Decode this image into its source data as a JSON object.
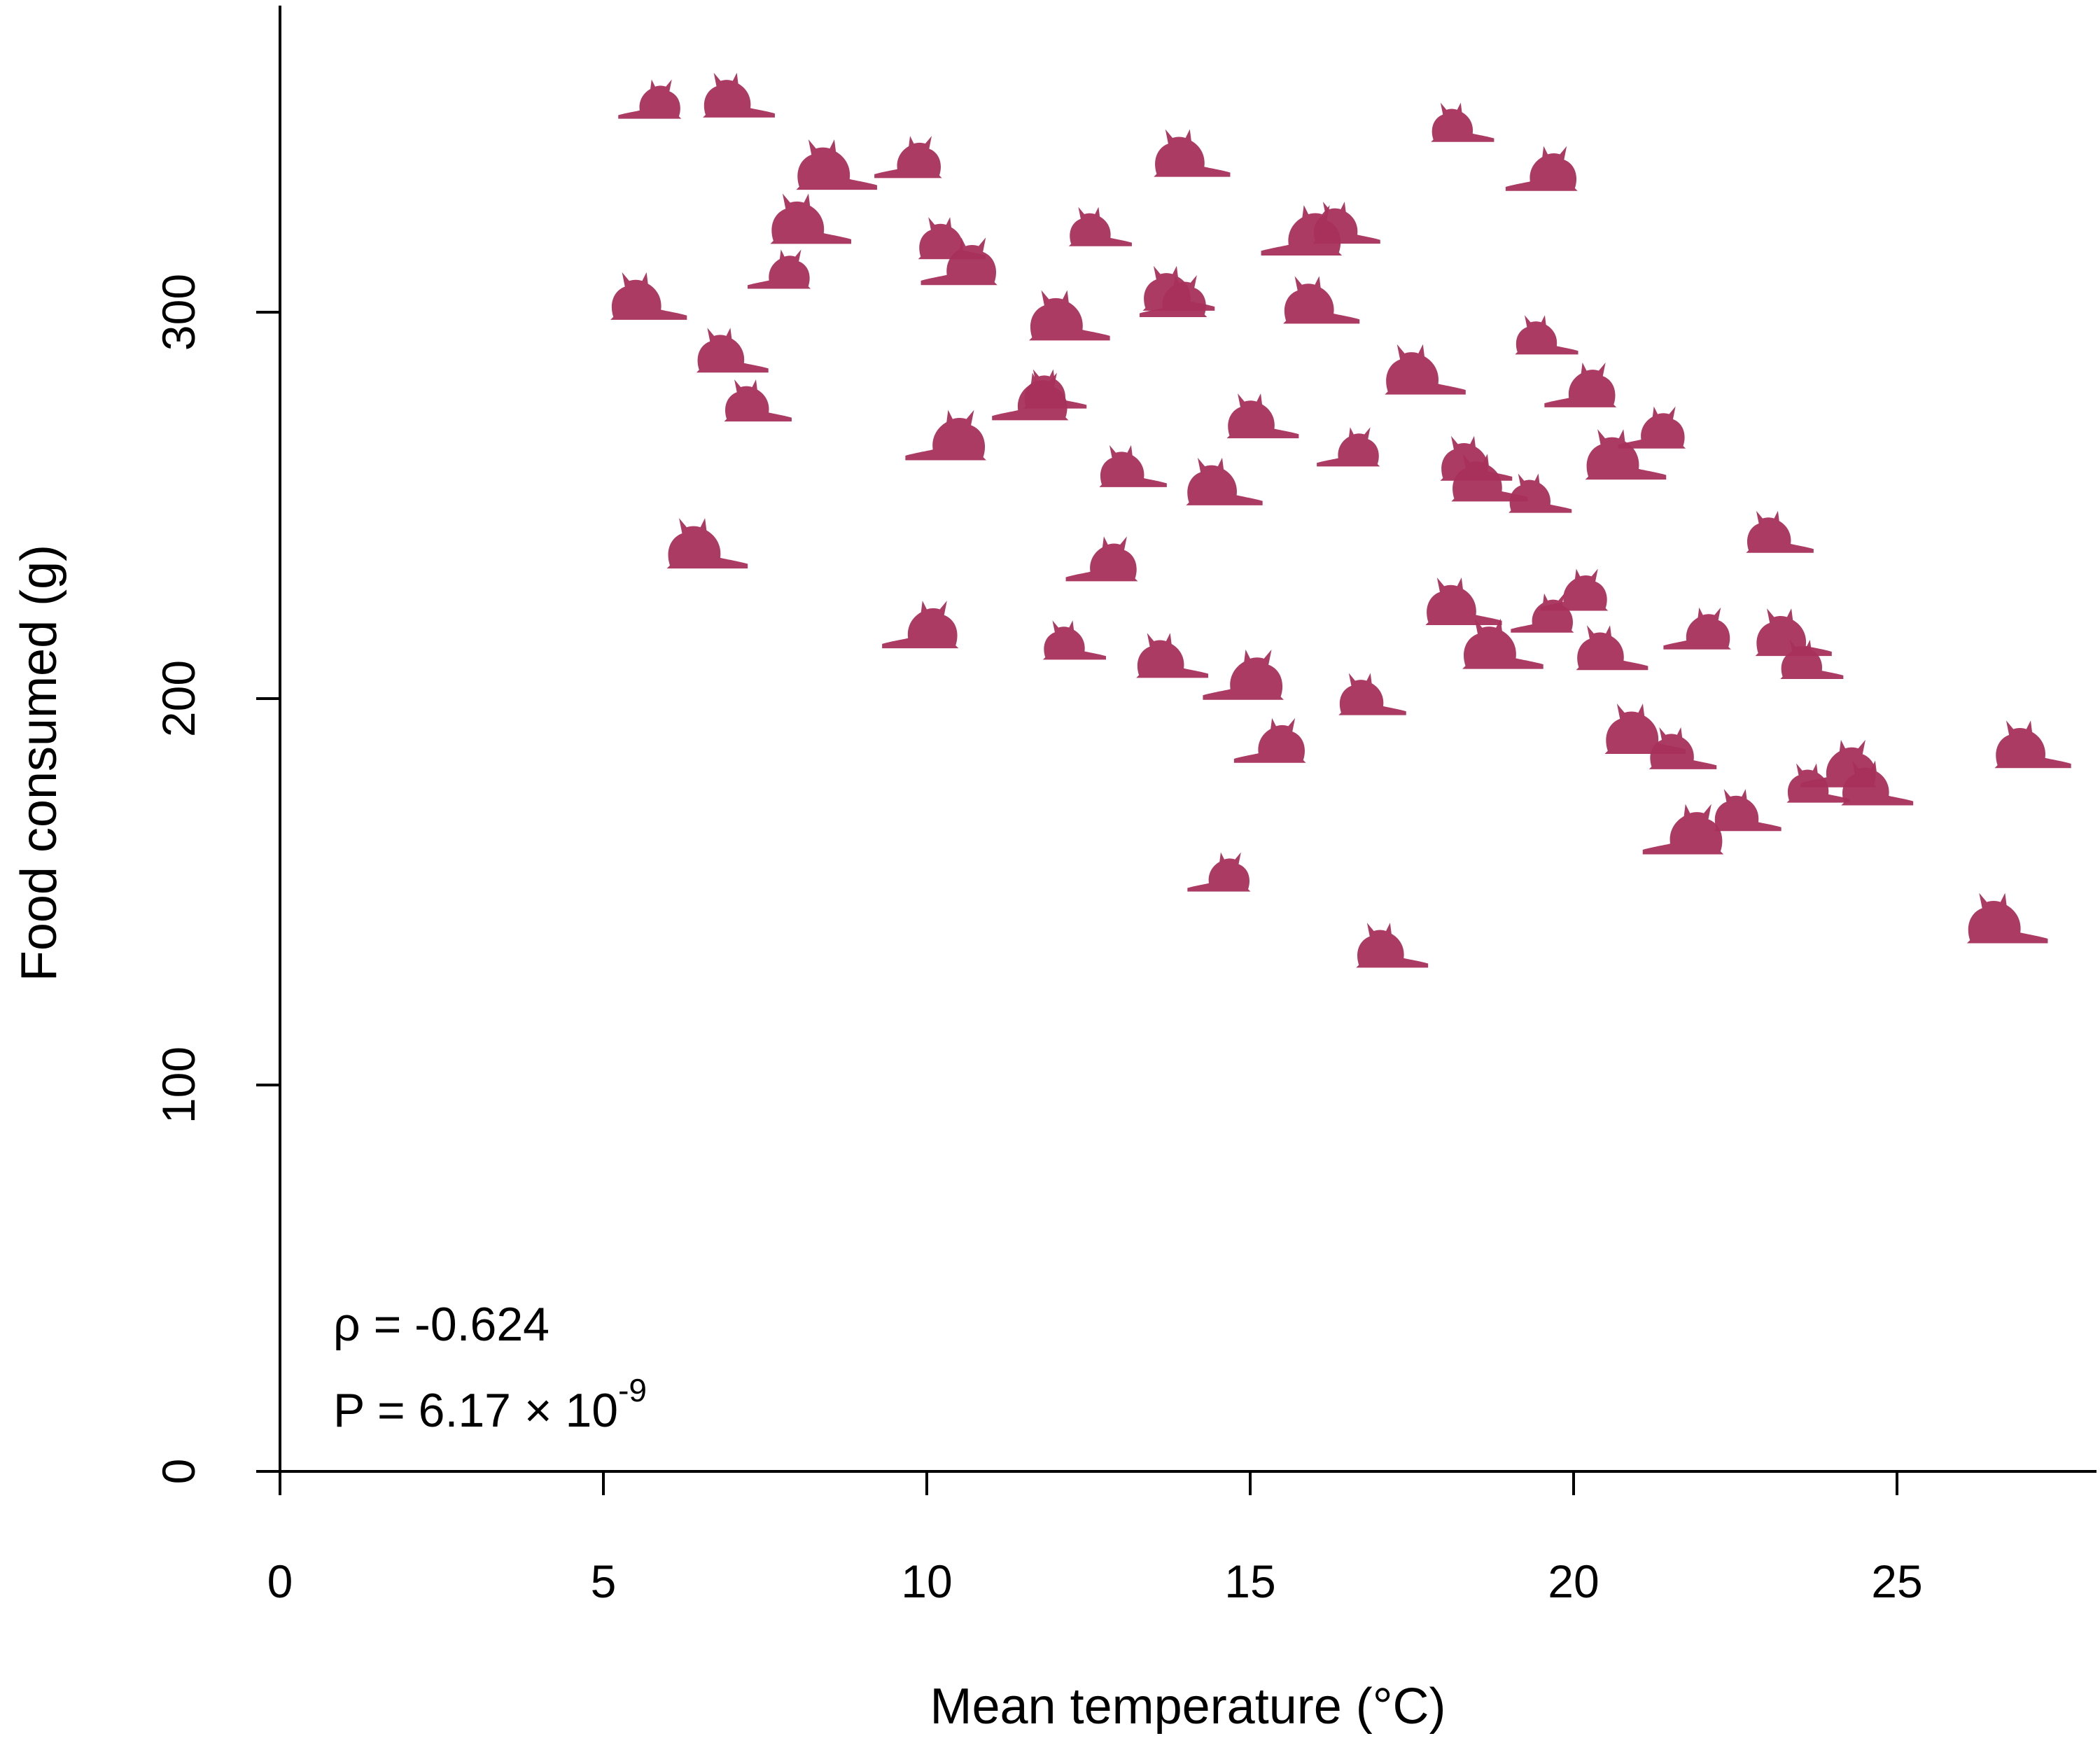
{
  "chart_data": {
    "type": "scatter",
    "xlabel": "Mean temperature (°C)",
    "ylabel": "Food consumed (g)",
    "xlim": [
      0,
      28
    ],
    "ylim": [
      0,
      380
    ],
    "xticks": [
      0,
      5,
      10,
      15,
      20,
      25
    ],
    "yticks": [
      0,
      100,
      200,
      300
    ],
    "marker": "cat-silhouette-icon",
    "marker_color": "#A8305C",
    "annotations": {
      "rho": "ρ = -0.624",
      "p_prefix": "P = 6.17 × 10",
      "p_exponent": "-9"
    },
    "series": [
      {
        "x": [
          5.8,
          7.0,
          8.5,
          9.8,
          14.0,
          18.2,
          19.6,
          8.1,
          10.3,
          10.6,
          12.6,
          13.8,
          15.9,
          16.4,
          5.6,
          7.8,
          6.9,
          12.1,
          13.9,
          16.0,
          19.5,
          20.2,
          17.6,
          7.3,
          11.7,
          11.9,
          15.1,
          10.4,
          13.1,
          14.5,
          16.6,
          18.4,
          20.7,
          21.3,
          18.6,
          19.4,
          12.8,
          6.5,
          23.1,
          10.0,
          12.2,
          13.7,
          15.0,
          16.8,
          18.2,
          19.6,
          20.5,
          18.8,
          22.0,
          23.3,
          23.6,
          15.4,
          21.0,
          21.6,
          24.2,
          23.7,
          24.6,
          21.8,
          22.6,
          27.0,
          14.6,
          17.1,
          26.6,
          20.1
        ],
        "y": [
          355,
          356,
          338,
          340,
          341,
          349,
          337,
          324,
          319,
          313,
          322,
          306,
          321,
          323,
          304,
          311,
          290,
          299,
          304,
          303,
          294,
          281,
          285,
          277,
          278,
          280,
          273,
          268,
          260,
          256,
          265,
          262,
          263,
          270,
          257,
          253,
          236,
          240,
          243,
          219,
          215,
          211,
          206,
          201,
          225,
          222,
          213,
          214,
          218,
          217,
          210,
          189,
          192,
          187,
          183,
          178,
          178,
          166,
          171,
          188,
          155,
          136,
          143,
          228
        ]
      }
    ]
  }
}
